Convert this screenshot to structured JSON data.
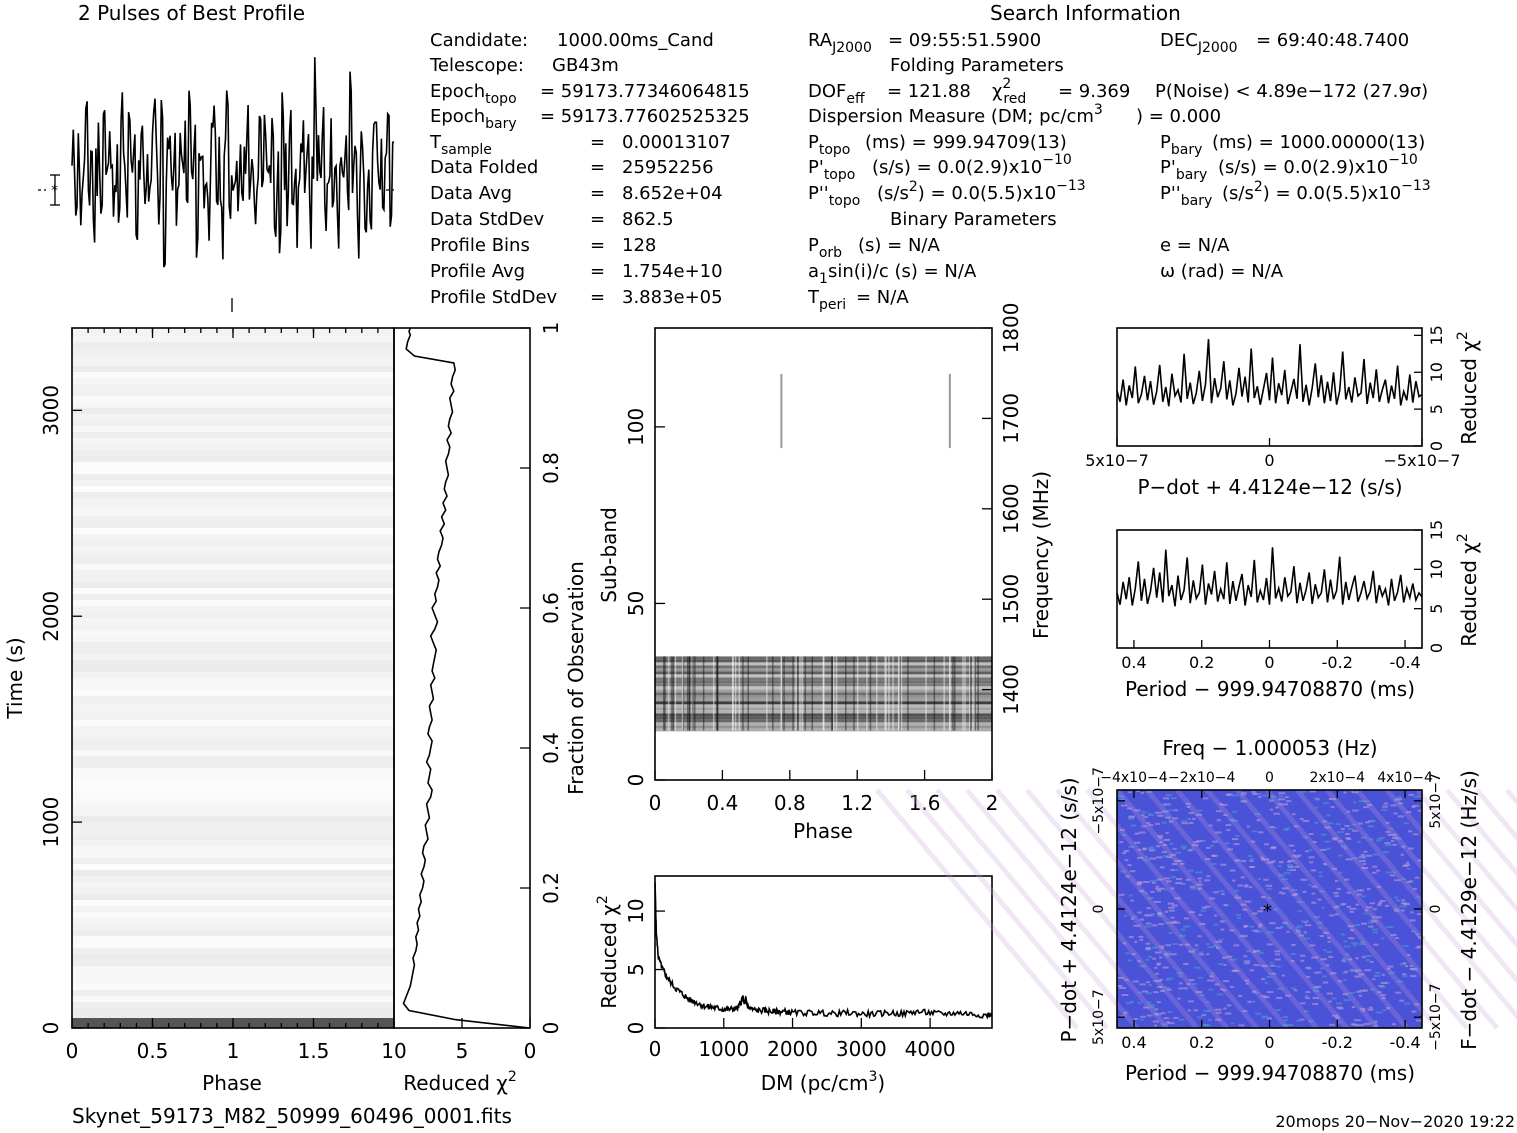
{
  "profile": {
    "title": "2 Pulses of Best Profile"
  },
  "info": {
    "search_heading": "Search Information",
    "folding_heading": "Folding Parameters",
    "binary_heading": "Binary Parameters",
    "candidate_label": "Candidate:",
    "candidate_value": "1000.00ms_Cand",
    "telescope_label": "Telescope:",
    "telescope_value": "GB43m",
    "epoch_topo": "Epoch",
    "epoch_topo_sub": "topo",
    "epoch_topo_value": "= 59173.77346064815",
    "epoch_bary": "Epoch",
    "epoch_bary_sub": "bary",
    "epoch_bary_value": "= 59173.77602525325",
    "tsample_label": "T",
    "tsample_sub": "sample",
    "tsample_eq": "=",
    "tsample_value": "0.00013107",
    "datafolded_label": "Data Folded",
    "datafolded_eq": "=",
    "datafolded_value": "25952256",
    "dataavg_label": "Data Avg",
    "dataavg_eq": "=",
    "dataavg_value": "8.652e+04",
    "datastd_label": "Data StdDev",
    "datastd_eq": "=",
    "datastd_value": "862.5",
    "bins_label": "Profile Bins",
    "bins_eq": "=",
    "bins_value": "128",
    "profavg_label": "Profile Avg",
    "profavg_eq": "=",
    "profavg_value": "1.754e+10",
    "profstd_label": "Profile StdDev",
    "profstd_eq": "=",
    "profstd_value": "3.883e+05",
    "ra_label": "RA",
    "ra_sub": "J2000",
    "ra_value": "= 09:55:51.5900",
    "dec_label": "DEC",
    "dec_sub": "J2000",
    "dec_value": "= 69:40:48.7400",
    "dof_label": "DOF",
    "dof_sub": "eff",
    "dof_value": "= 121.88",
    "chi_label": "χ",
    "chi_sup": "2",
    "chi_sub": "red",
    "chi_value": "= 9.369",
    "pnoise": "P(Noise) < 4.89e−172   (27.9σ)",
    "dm_text": "Dispersion Measure (DM; pc/cm",
    "dm_sup": "3",
    "dm_value": ") = 0.000",
    "ptopo_label": "P",
    "ptopo_sub": "topo",
    "ptopo_value": "(ms) =  999.94709(13)",
    "pbary_label": "P",
    "pbary_sub": "bary",
    "pbary_value": "(ms) =  1000.00000(13)",
    "pdtopo_label": "P'",
    "pdtopo_sub": "topo",
    "pdtopo_value": "(s/s) = 0.0(2.9)x10",
    "pdtopo_exp": "−10",
    "pdbary_label": "P'",
    "pdbary_sub": "bary",
    "pdbary_value": "(s/s) = 0.0(2.9)x10",
    "pdbary_exp": "−10",
    "pddtopo_label": "P''",
    "pddtopo_sub": "topo",
    "pddtopo_a": "(s/s",
    "pddtopo_sup": "2",
    "pddtopo_value": ") = 0.0(5.5)x10",
    "pddtopo_exp": "−13",
    "pddbary_label": "P''",
    "pddbary_sub": "bary",
    "pddbary_a": "(s/s",
    "pddbary_sup": "2",
    "pddbary_value": ") = 0.0(5.5)x10",
    "pddbary_exp": "−13",
    "porb_label": "P",
    "porb_sub": "orb",
    "porb_value": "(s) = N/A",
    "e_text": "e = N/A",
    "asini_a": "a",
    "asini_sub": "1",
    "asini_value": "sin(i)/c (s) = N/A",
    "omega_text": "ω (rad) = N/A",
    "tperi_label": "T",
    "tperi_sub": "peri",
    "tperi_value": "= N/A"
  },
  "footer": {
    "filename": "Skynet_59173_M82_50999_60496_0001.fits",
    "stamp": "20mops 20−Nov−2020 19:22"
  },
  "accent": {
    "ppdot_blue": "#4a52d8",
    "ppdot_pink": "#c8a0d8",
    "ppdot_cyan": "#4aa0d0"
  },
  "chart_data": [
    {
      "type": "line",
      "name": "profile",
      "title": "2 Pulses of Best Profile",
      "x": [
        0,
        0.0156,
        0.0313,
        0.0469,
        0.0625,
        0.0781,
        0.0938,
        0.1094,
        0.125,
        0.1406,
        0.1563,
        0.1719,
        0.1875,
        0.2031,
        0.2188,
        0.2344,
        0.25,
        0.2656,
        0.2813,
        0.2969,
        0.3125,
        0.3281,
        0.3438,
        0.3594,
        0.375,
        0.3906,
        0.4063,
        0.4219,
        0.4375,
        0.4531,
        0.4688,
        0.4844,
        0.5,
        0.5156,
        0.5313,
        0.5469,
        0.5625,
        0.5781,
        0.5938,
        0.6094,
        0.625,
        0.6406,
        0.6563,
        0.6719,
        0.6875,
        0.7031,
        0.7188,
        0.7344,
        0.75,
        0.7656,
        0.7813,
        0.7969,
        0.8125,
        0.8281,
        0.8438,
        0.8594,
        0.875,
        0.8906,
        0.9063,
        0.9219,
        0.9375,
        0.9531,
        0.9688,
        0.9844,
        1
      ],
      "values": [
        0.0,
        0.6,
        -0.4,
        0.8,
        -1.2,
        0.3,
        1.4,
        -0.5,
        0.9,
        -1.6,
        0.2,
        1.1,
        -0.8,
        1.9,
        -0.3,
        0.7,
        1.3,
        -1.1,
        0.4,
        -1.8,
        2.1,
        0.1,
        -0.9,
        1.2,
        -0.2,
        0.8,
        -1.4,
        0.5,
        1.6,
        -0.7,
        0.3,
        -1.3,
        0.9,
        2.8,
        0.4,
        -0.6,
        1.7,
        -1.9,
        0.2,
        0.9,
        -0.4,
        1.2,
        -1.5,
        0.6,
        0.1,
        1.0,
        -1.0,
        2.4,
        -0.3,
        0.7,
        -1.7,
        0.4,
        1.1,
        -0.8,
        0.3,
        -1.2,
        0.8,
        1.5,
        -0.5,
        0.2,
        -1.6,
        0.9,
        1.8,
        -0.6,
        0.0
      ],
      "note_x": "phase repeated twice (0–2)"
    },
    {
      "type": "heatmap",
      "name": "time-phase",
      "xlabel": "Phase",
      "ylabel": "Time (s)",
      "xlim": [
        0,
        2
      ],
      "ylim": [
        0,
        3400
      ],
      "xticks": [
        0,
        0.5,
        1,
        1.5
      ],
      "yticks": [
        0,
        1000,
        2000,
        3000
      ]
    },
    {
      "type": "line",
      "name": "reduced-chi2-vs-fraction",
      "xlabel": "Reduced χ2",
      "ylabel": "Fraction of Observation",
      "xlim": [
        10,
        0
      ],
      "ylim": [
        0,
        1
      ],
      "xticks": [
        10,
        5,
        0
      ],
      "yticks": [
        0,
        0.2,
        0.4,
        0.6,
        0.8,
        1
      ],
      "x": [
        0.0,
        5.5,
        8.9,
        9.3,
        9.0,
        8.8,
        8.7,
        8.6,
        8.5,
        8.6,
        8.4,
        8.3,
        8.4,
        8.2,
        8.3,
        8.1,
        8.2,
        8.0,
        8.1,
        7.9,
        7.8,
        8.0,
        7.8,
        7.7,
        7.9,
        7.8,
        7.5,
        7.6,
        7.7,
        7.4,
        7.5,
        7.6,
        7.3,
        7.2,
        7.5,
        7.4,
        7.3,
        7.6,
        7.4,
        7.3,
        7.2,
        7.5,
        7.4,
        7.2,
        7.3,
        7.4,
        7.1,
        7.2,
        7.3,
        7.0,
        7.2,
        7.1,
        7.0,
        6.9,
        7.1,
        7.3,
        7.0,
        6.8,
        7.0,
        7.2,
        6.9,
        7.0,
        6.8,
        6.7,
        6.9,
        6.6,
        6.8,
        6.7,
        6.5,
        6.4,
        6.6,
        6.3,
        6.5,
        6.2,
        6.4,
        6.1,
        6.3,
        6.2,
        6.0,
        6.1,
        6.2,
        6.0,
        5.9,
        6.1,
        5.8,
        6.0,
        5.9,
        5.7,
        5.8,
        5.9,
        5.6,
        5.8,
        5.7,
        5.5,
        5.6,
        8.5,
        9.1,
        9.0,
        8.8,
        8.9,
        8.8
      ],
      "y": [
        0.0,
        0.012,
        0.025,
        0.035,
        0.05,
        0.06,
        0.07,
        0.08,
        0.09,
        0.1,
        0.11,
        0.12,
        0.13,
        0.14,
        0.15,
        0.16,
        0.17,
        0.18,
        0.19,
        0.2,
        0.21,
        0.22,
        0.23,
        0.24,
        0.25,
        0.26,
        0.27,
        0.28,
        0.29,
        0.3,
        0.31,
        0.32,
        0.33,
        0.34,
        0.35,
        0.36,
        0.37,
        0.38,
        0.39,
        0.4,
        0.41,
        0.42,
        0.43,
        0.44,
        0.45,
        0.46,
        0.47,
        0.48,
        0.49,
        0.5,
        0.51,
        0.52,
        0.53,
        0.54,
        0.55,
        0.56,
        0.57,
        0.58,
        0.59,
        0.6,
        0.61,
        0.62,
        0.63,
        0.64,
        0.65,
        0.66,
        0.67,
        0.68,
        0.69,
        0.7,
        0.71,
        0.72,
        0.73,
        0.74,
        0.75,
        0.76,
        0.77,
        0.78,
        0.79,
        0.8,
        0.81,
        0.82,
        0.83,
        0.84,
        0.85,
        0.86,
        0.87,
        0.88,
        0.89,
        0.9,
        0.91,
        0.92,
        0.93,
        0.94,
        0.95,
        0.96,
        0.97,
        0.98,
        0.99,
        0.995,
        1.0
      ]
    },
    {
      "type": "heatmap",
      "name": "subband-phase",
      "xlabel": "Phase",
      "ylabel": "Sub-band",
      "ylabel2": "Frequency (MHz)",
      "xlim": [
        0,
        2
      ],
      "ylim": [
        0,
        128
      ],
      "y2lim": [
        1300,
        1800
      ],
      "xticks": [
        0,
        0.4,
        0.8,
        1.2,
        1.6,
        2
      ],
      "yticks": [
        0,
        50,
        100
      ],
      "y2ticks": [
        1400,
        1500,
        1600,
        1700,
        1800
      ],
      "band_subbands": [
        14,
        35
      ],
      "rfi_lines_phase": [
        0.75,
        1.75
      ],
      "rfi_lines_subbands": [
        94,
        115
      ]
    },
    {
      "type": "line",
      "name": "dm-chi2",
      "xlabel": "DM (pc/cm3)",
      "ylabel": "Reduced χ2",
      "xlim": [
        0,
        4900
      ],
      "ylim": [
        0,
        13
      ],
      "xticks": [
        0,
        1000,
        2000,
        3000,
        4000
      ],
      "yticks": [
        0,
        5,
        10
      ],
      "x": [
        0,
        20,
        50,
        100,
        150,
        200,
        300,
        400,
        500,
        600,
        700,
        800,
        900,
        1000,
        1100,
        1200,
        1250,
        1280,
        1300,
        1320,
        1350,
        1400,
        1500,
        1600,
        1700,
        1800,
        1900,
        2000,
        2200,
        2400,
        2600,
        2800,
        3000,
        3200,
        3400,
        3600,
        3800,
        4000,
        4200,
        4400,
        4600,
        4800,
        4900
      ],
      "values": [
        12.5,
        8.0,
        6.0,
        5.2,
        4.6,
        4.1,
        3.4,
        2.9,
        2.4,
        2.2,
        1.9,
        1.8,
        1.7,
        1.6,
        1.6,
        1.7,
        2.2,
        2.6,
        2.0,
        2.5,
        1.8,
        1.6,
        1.5,
        1.5,
        1.4,
        1.4,
        1.4,
        1.3,
        1.3,
        1.3,
        1.2,
        1.3,
        1.2,
        1.2,
        1.3,
        1.2,
        1.4,
        1.3,
        1.2,
        1.3,
        1.2,
        1.1,
        1.1
      ]
    },
    {
      "type": "line",
      "name": "pdot-chi2",
      "xlabel": "P−dot + 4.4124e−12 (s/s)",
      "ylabel": "Reduced χ2",
      "xlim": [
        5e-07,
        -5e-07
      ],
      "ylim": [
        0,
        16
      ],
      "xticks_labels": [
        "5x10−7",
        "0",
        "−5x10−7"
      ],
      "yticks": [
        0,
        5,
        10,
        15
      ],
      "values": [
        7.5,
        6.0,
        9.0,
        5.5,
        8.2,
        6.5,
        10.8,
        5.8,
        7.0,
        9.5,
        6.2,
        8.8,
        5.6,
        7.4,
        11.0,
        6.0,
        8.0,
        5.4,
        9.8,
        6.8,
        7.6,
        5.9,
        12.5,
        6.4,
        8.6,
        5.7,
        7.2,
        10.2,
        6.1,
        8.4,
        14.5,
        5.8,
        9.2,
        6.6,
        7.8,
        11.5,
        6.3,
        8.9,
        5.5,
        7.1,
        10.6,
        6.7,
        9.4,
        5.9,
        13.2,
        6.5,
        8.1,
        5.6,
        7.7,
        9.9,
        6.2,
        12.0,
        5.8,
        8.5,
        6.9,
        10.3,
        5.7,
        7.3,
        9.1,
        6.4,
        13.8,
        6.0,
        8.3,
        5.5,
        7.9,
        11.2,
        6.6,
        9.6,
        5.8,
        8.7,
        6.1,
        10.0,
        5.6,
        7.5,
        12.8,
        6.3,
        8.0,
        5.9,
        9.3,
        6.8,
        7.2,
        11.8,
        5.7,
        8.6,
        6.5,
        10.4,
        6.0,
        7.6,
        9.0,
        5.8,
        8.2,
        6.4,
        10.9,
        5.5,
        7.4,
        6.2,
        9.7,
        5.9,
        8.8,
        6.7,
        7.0
      ]
    },
    {
      "type": "line",
      "name": "period-chi2",
      "xlabel": "Period − 999.94708870 (ms)",
      "ylabel": "Reduced χ2",
      "xlim": [
        0.45,
        -0.45
      ],
      "ylim": [
        0,
        15
      ],
      "xticks": [
        0.4,
        0.2,
        0,
        -0.2,
        -0.4
      ],
      "yticks": [
        0,
        5,
        10,
        15
      ],
      "values": [
        7.0,
        5.5,
        8.4,
        6.2,
        9.0,
        5.4,
        7.6,
        11.0,
        6.0,
        8.8,
        5.6,
        7.2,
        10.2,
        6.4,
        9.6,
        5.8,
        12.5,
        6.6,
        8.0,
        5.3,
        9.2,
        6.1,
        7.4,
        11.5,
        5.7,
        8.6,
        6.3,
        7.0,
        10.6,
        5.5,
        8.2,
        6.8,
        9.8,
        5.9,
        7.5,
        6.2,
        10.9,
        5.6,
        8.5,
        6.0,
        7.8,
        9.4,
        5.4,
        8.0,
        6.5,
        11.2,
        5.8,
        7.3,
        6.1,
        8.9,
        5.5,
        12.8,
        6.3,
        7.6,
        5.9,
        9.0,
        6.6,
        7.1,
        10.4,
        5.7,
        8.3,
        6.0,
        7.4,
        9.6,
        5.6,
        8.1,
        6.4,
        7.0,
        10.0,
        5.8,
        8.7,
        6.2,
        7.3,
        11.6,
        5.5,
        8.4,
        6.1,
        7.7,
        9.2,
        5.9,
        7.0,
        8.5,
        6.3,
        7.2,
        9.8,
        5.7,
        8.0,
        6.6,
        7.5,
        5.4,
        8.8,
        6.0,
        7.1,
        9.3,
        5.8,
        7.6,
        6.4,
        8.2,
        6.1,
        7.0,
        6.5
      ]
    },
    {
      "type": "heatmap",
      "name": "p-pdot",
      "title": "Freq − 1.000053 (Hz)",
      "xlabel": "Period − 999.94708870 (ms)",
      "ylabel": "P−dot + 4.4124e−12 (s/s)",
      "ylabel2": "F−dot − 4.4129e−12 (Hz/s)",
      "xlim": [
        0.45,
        -0.45
      ],
      "xticks": [
        0.4,
        0.2,
        0,
        -0.2,
        -0.4
      ],
      "top_ticks_labels": [
        "−4x10−4",
        "−2x10−4",
        "0",
        "2x10−4",
        "4x10−4"
      ],
      "left_ticks_labels": [
        "−5x10−7",
        "0",
        "5x10−7"
      ],
      "right_ticks_labels": [
        "5x10−7",
        "0",
        "−5x10−7"
      ],
      "best_marker": [
        0,
        0
      ]
    }
  ]
}
